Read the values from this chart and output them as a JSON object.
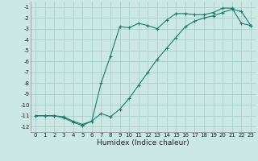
{
  "xlabel": "Humidex (Indice chaleur)",
  "bg_color": "#cce8e4",
  "grid_color": "#aacfca",
  "line_color": "#1a7a6e",
  "line1_x": [
    0,
    1,
    2,
    3,
    4,
    5,
    6,
    7,
    8,
    9,
    10,
    11,
    12,
    13,
    14,
    15,
    16,
    17,
    18,
    19,
    20,
    21,
    22,
    23
  ],
  "line1_y": [
    -11,
    -11,
    -11,
    -11.2,
    -11.6,
    -11.9,
    -11.5,
    -8.0,
    -5.5,
    -2.8,
    -2.9,
    -2.5,
    -2.7,
    -3.0,
    -2.2,
    -1.6,
    -1.6,
    -1.7,
    -1.7,
    -1.5,
    -1.1,
    -1.1,
    -2.5,
    -2.7
  ],
  "line2_x": [
    0,
    1,
    2,
    3,
    4,
    5,
    6,
    7,
    8,
    9,
    10,
    11,
    12,
    13,
    14,
    15,
    16,
    17,
    18,
    19,
    20,
    21,
    22,
    23
  ],
  "line2_y": [
    -11,
    -11,
    -11,
    -11.1,
    -11.5,
    -11.8,
    -11.5,
    -10.8,
    -11.1,
    -10.4,
    -9.4,
    -8.2,
    -7.0,
    -5.8,
    -4.8,
    -3.8,
    -2.8,
    -2.3,
    -2.0,
    -1.8,
    -1.5,
    -1.2,
    -1.4,
    -2.7
  ],
  "xlim": [
    -0.5,
    23.5
  ],
  "ylim": [
    -12.5,
    -0.5
  ],
  "yticks": [
    -12,
    -11,
    -10,
    -9,
    -8,
    -7,
    -6,
    -5,
    -4,
    -3,
    -2,
    -1
  ],
  "xticks": [
    0,
    1,
    2,
    3,
    4,
    5,
    6,
    7,
    8,
    9,
    10,
    11,
    12,
    13,
    14,
    15,
    16,
    17,
    18,
    19,
    20,
    21,
    22,
    23
  ],
  "tick_fontsize": 5.0,
  "xlabel_fontsize": 6.5
}
